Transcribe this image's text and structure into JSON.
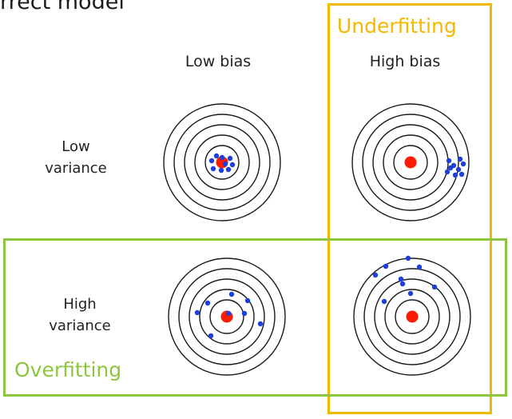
{
  "title_partial": "rrect model",
  "columns": [
    "Low bias",
    "High bias"
  ],
  "rows": [
    {
      "line1": "Low",
      "line2": "variance"
    },
    {
      "line1": "High",
      "line2": "variance"
    }
  ],
  "underfitting": {
    "label": "Underfitting",
    "color": "#f5b800"
  },
  "overfitting": {
    "label": "Overfitting",
    "color": "#8cc63f"
  },
  "colors": {
    "ring": "#1a1a1a",
    "bullseye": "#ff1a00",
    "dot": "#1e3fdc"
  }
}
